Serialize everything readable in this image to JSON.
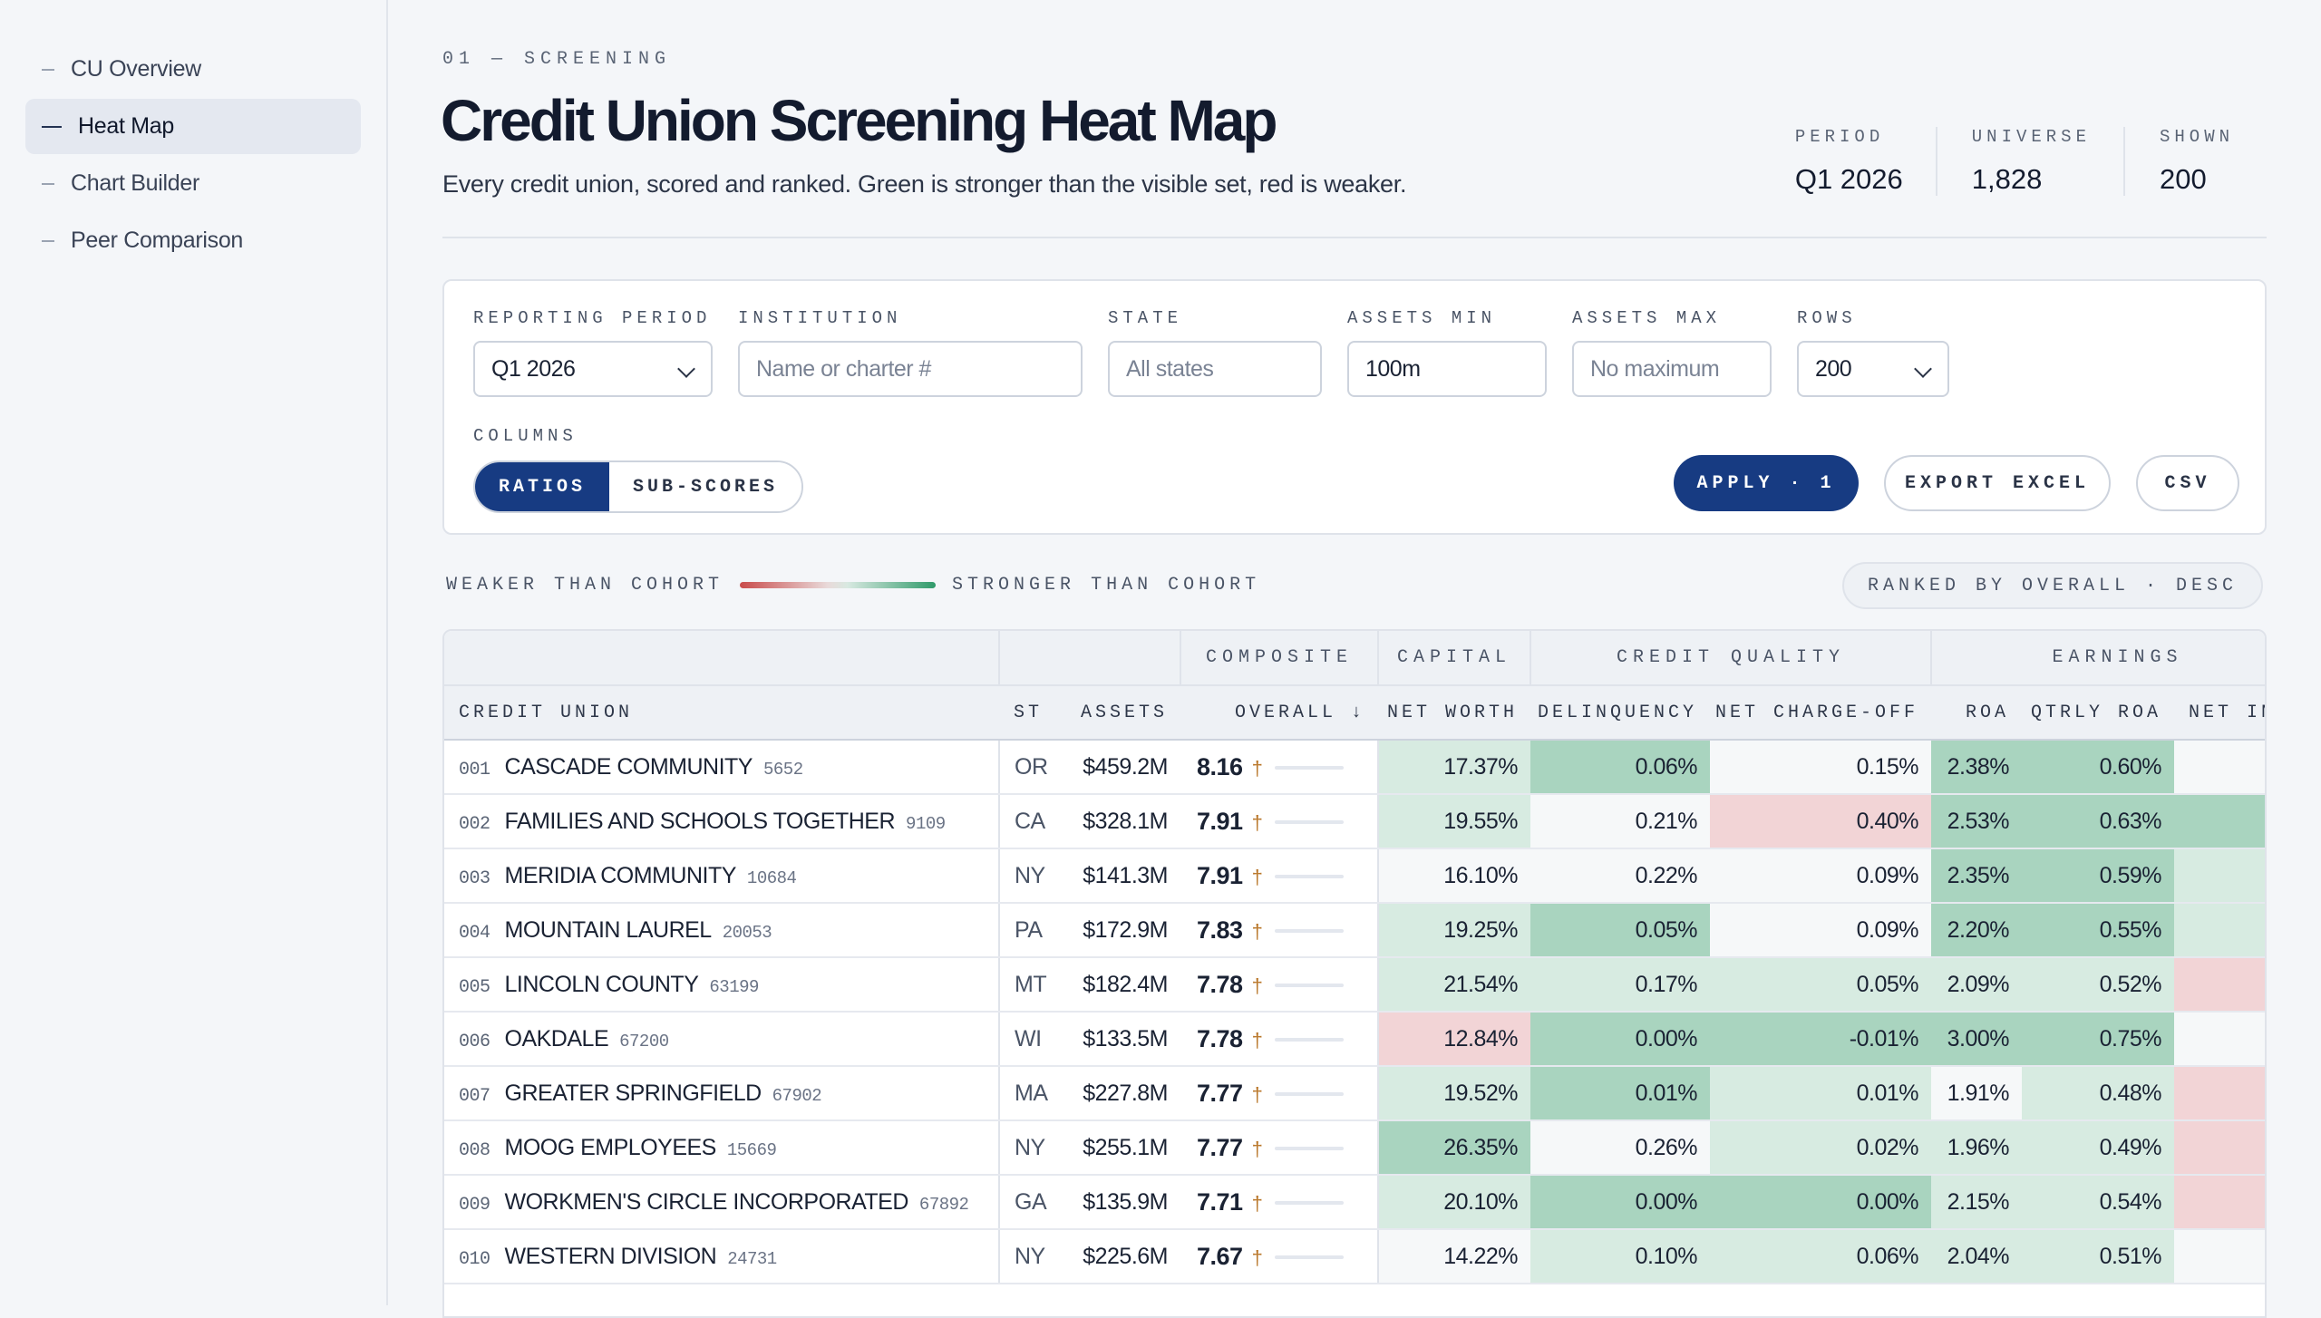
{
  "nav": [
    "CU Overview",
    "Heat Map",
    "Chart Builder",
    "Peer Comparison"
  ],
  "header": {
    "eyebrow": "01 — SCREENING",
    "title": "Credit Union Screening Heat Map",
    "subtitle": "Every credit union, scored and ranked. Green is stronger than the visible set, red is weaker.",
    "stats": [
      {
        "label": "PERIOD",
        "value": "Q1 2026"
      },
      {
        "label": "UNIVERSE",
        "value": "1,828"
      },
      {
        "label": "SHOWN",
        "value": "200"
      }
    ]
  },
  "filters": {
    "period_label": "REPORTING PERIOD",
    "period_value": "Q1 2026",
    "institution_label": "INSTITUTION",
    "institution_placeholder": "Name or charter #",
    "state_label": "STATE",
    "state_placeholder": "All states",
    "assets_min_label": "ASSETS MIN",
    "assets_min_value": "100m",
    "assets_max_label": "ASSETS MAX",
    "assets_max_placeholder": "No maximum",
    "rows_label": "ROWS",
    "rows_value": "200",
    "columns_label": "COLUMNS",
    "columns_on": "RATIOS",
    "columns_off": "SUB-SCORES",
    "apply": "APPLY · 1",
    "export_excel": "EXPORT EXCEL",
    "csv": "CSV"
  },
  "legend": {
    "weaker": "WEAKER THAN COHORT",
    "stronger": "STRONGER THAN COHORT",
    "ranked": "RANKED BY OVERALL · DESC"
  },
  "table": {
    "groups": [
      "COMPOSITE",
      "CAPITAL",
      "CREDIT QUALITY",
      "EARNINGS"
    ],
    "columns": [
      "CREDIT UNION",
      "ST",
      "ASSETS",
      "OVERALL ↓",
      "NET WORTH",
      "DELINQUENCY",
      "NET CHARGE-OFF",
      "ROA",
      "QTRLY ROA",
      "NET IN"
    ],
    "rows": [
      {
        "rank": "001",
        "name": "CASCADE COMMUNITY",
        "charter": "5652",
        "st": "OR",
        "assets": "$459.2M",
        "overall": "8.16",
        "nw": "17.37%",
        "dq": "0.06%",
        "nco": "0.15%",
        "roa": "2.38%",
        "qroa": "0.60%"
      },
      {
        "rank": "002",
        "name": "FAMILIES AND SCHOOLS TOGETHER",
        "charter": "9109",
        "st": "CA",
        "assets": "$328.1M",
        "overall": "7.91",
        "nw": "19.55%",
        "dq": "0.21%",
        "nco": "0.40%",
        "roa": "2.53%",
        "qroa": "0.63%"
      },
      {
        "rank": "003",
        "name": "MERIDIA COMMUNITY",
        "charter": "10684",
        "st": "NY",
        "assets": "$141.3M",
        "overall": "7.91",
        "nw": "16.10%",
        "dq": "0.22%",
        "nco": "0.09%",
        "roa": "2.35%",
        "qroa": "0.59%"
      },
      {
        "rank": "004",
        "name": "MOUNTAIN LAUREL",
        "charter": "20053",
        "st": "PA",
        "assets": "$172.9M",
        "overall": "7.83",
        "nw": "19.25%",
        "dq": "0.05%",
        "nco": "0.09%",
        "roa": "2.20%",
        "qroa": "0.55%"
      },
      {
        "rank": "005",
        "name": "LINCOLN COUNTY",
        "charter": "63199",
        "st": "MT",
        "assets": "$182.4M",
        "overall": "7.78",
        "nw": "21.54%",
        "dq": "0.17%",
        "nco": "0.05%",
        "roa": "2.09%",
        "qroa": "0.52%"
      },
      {
        "rank": "006",
        "name": "OAKDALE",
        "charter": "67200",
        "st": "WI",
        "assets": "$133.5M",
        "overall": "7.78",
        "nw": "12.84%",
        "dq": "0.00%",
        "nco": "-0.01%",
        "roa": "3.00%",
        "qroa": "0.75%"
      },
      {
        "rank": "007",
        "name": "GREATER SPRINGFIELD",
        "charter": "67902",
        "st": "MA",
        "assets": "$227.8M",
        "overall": "7.77",
        "nw": "19.52%",
        "dq": "0.01%",
        "nco": "0.01%",
        "roa": "1.91%",
        "qroa": "0.48%"
      },
      {
        "rank": "008",
        "name": "MOOG EMPLOYEES",
        "charter": "15669",
        "st": "NY",
        "assets": "$255.1M",
        "overall": "7.77",
        "nw": "26.35%",
        "dq": "0.26%",
        "nco": "0.02%",
        "roa": "1.96%",
        "qroa": "0.49%"
      },
      {
        "rank": "009",
        "name": "WORKMEN'S CIRCLE INCORPORATED",
        "charter": "67892",
        "st": "GA",
        "assets": "$135.9M",
        "overall": "7.71",
        "nw": "20.10%",
        "dq": "0.00%",
        "nco": "0.00%",
        "roa": "2.15%",
        "qroa": "0.54%"
      },
      {
        "rank": "010",
        "name": "WESTERN DIVISION",
        "charter": "24731",
        "st": "NY",
        "assets": "$225.6M",
        "overall": "7.67",
        "nw": "14.22%",
        "dq": "0.10%",
        "nco": "0.06%",
        "roa": "2.04%",
        "qroa": "0.51%"
      }
    ]
  },
  "colors": {
    "accent": "#173b82",
    "strong": "#a9d4bf",
    "mid": "#d7ebe1",
    "neutral": "#f6f8f9",
    "weak": "#f2d4d6"
  }
}
